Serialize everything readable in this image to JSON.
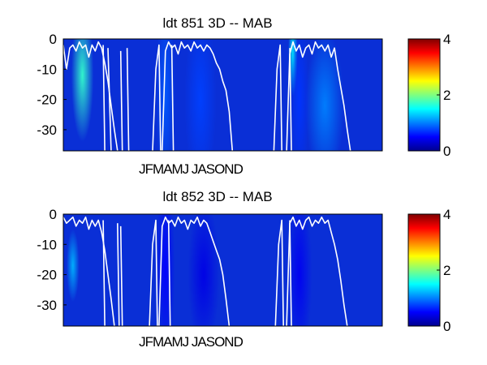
{
  "chart_data": [
    {
      "type": "heatmap",
      "title": "ldt   851 3D    -- MAB",
      "xlabel": "JFMAMJ JASOND",
      "ylabel": "",
      "ylim": [
        -37,
        0
      ],
      "yticks": [
        0,
        -10,
        -20,
        -30
      ],
      "colorbar": {
        "range": [
          0,
          4
        ],
        "ticks": [
          0,
          2,
          4
        ],
        "colormap": "jet"
      },
      "hotspots": [
        {
          "x": 0.06,
          "depth": -12,
          "value": 1.7,
          "w": 0.035,
          "d": 22
        },
        {
          "x": 0.32,
          "depth": -18,
          "value": 0.85,
          "w": 0.03,
          "d": 32
        },
        {
          "x": 0.43,
          "depth": -20,
          "value": 0.75,
          "w": 0.05,
          "d": 30
        },
        {
          "x": 0.72,
          "depth": -5,
          "value": 1.5,
          "w": 0.015,
          "d": 14
        },
        {
          "x": 0.82,
          "depth": -22,
          "value": 1.0,
          "w": 0.06,
          "d": 25
        },
        {
          "x": 0.74,
          "depth": -20,
          "value": 0.7,
          "w": 0.03,
          "d": 28
        }
      ],
      "line": {
        "color": "#ffffff",
        "segments": [
          [
            [
              0.0,
              -2
            ],
            [
              0.01,
              -10
            ],
            [
              0.02,
              -3
            ],
            [
              0.03,
              -2
            ],
            [
              0.04,
              -4
            ],
            [
              0.05,
              -1
            ],
            [
              0.06,
              -3
            ],
            [
              0.07,
              -2
            ],
            [
              0.08,
              -6
            ],
            [
              0.09,
              -2
            ],
            [
              0.1,
              -4
            ],
            [
              0.11,
              -1
            ],
            [
              0.12,
              -3
            ],
            [
              0.13,
              -8
            ],
            [
              0.14,
              -14
            ],
            [
              0.15,
              -22
            ],
            [
              0.16,
              -30
            ],
            [
              0.17,
              -37
            ]
          ],
          [
            [
              0.125,
              -2
            ],
            [
              0.13,
              -37
            ]
          ],
          [
            [
              0.14,
              -3
            ],
            [
              0.15,
              -37
            ]
          ],
          [
            [
              0.18,
              -4
            ],
            [
              0.185,
              -37
            ]
          ],
          [
            [
              0.2,
              -3
            ],
            [
              0.205,
              -37
            ]
          ],
          [
            [
              0.28,
              -37
            ],
            [
              0.29,
              -10
            ],
            [
              0.3,
              -2
            ],
            [
              0.305,
              -37
            ]
          ],
          [
            [
              0.31,
              -37
            ],
            [
              0.32,
              -4
            ],
            [
              0.33,
              -1
            ],
            [
              0.34,
              -3
            ],
            [
              0.35,
              -2
            ],
            [
              0.36,
              -5
            ],
            [
              0.37,
              -1
            ],
            [
              0.38,
              -3
            ],
            [
              0.39,
              -2
            ],
            [
              0.4,
              -4
            ],
            [
              0.41,
              -1
            ],
            [
              0.42,
              -3
            ],
            [
              0.43,
              -2
            ],
            [
              0.44,
              -4
            ],
            [
              0.45,
              -2
            ],
            [
              0.46,
              -3
            ],
            [
              0.47,
              -5
            ],
            [
              0.48,
              -8
            ],
            [
              0.49,
              -10
            ],
            [
              0.5,
              -14
            ],
            [
              0.51,
              -17
            ],
            [
              0.52,
              -24
            ],
            [
              0.53,
              -37
            ]
          ],
          [
            [
              0.34,
              -2
            ],
            [
              0.345,
              -37
            ]
          ],
          [
            [
              0.66,
              -37
            ],
            [
              0.67,
              -10
            ],
            [
              0.68,
              -2
            ],
            [
              0.685,
              -37
            ]
          ],
          [
            [
              0.7,
              -37
            ],
            [
              0.71,
              -5
            ],
            [
              0.72,
              -1
            ],
            [
              0.73,
              -4
            ],
            [
              0.74,
              -2
            ],
            [
              0.75,
              -6
            ],
            [
              0.76,
              -3
            ],
            [
              0.77,
              -2
            ],
            [
              0.78,
              -5
            ],
            [
              0.79,
              -1
            ],
            [
              0.8,
              -3
            ],
            [
              0.81,
              -2
            ],
            [
              0.82,
              -4
            ],
            [
              0.83,
              -2
            ],
            [
              0.84,
              -6
            ],
            [
              0.85,
              -3
            ],
            [
              0.86,
              -10
            ],
            [
              0.87,
              -16
            ],
            [
              0.88,
              -22
            ],
            [
              0.89,
              -30
            ],
            [
              0.9,
              -37
            ]
          ],
          [
            [
              0.71,
              -3
            ],
            [
              0.715,
              -37
            ]
          ]
        ]
      }
    },
    {
      "type": "heatmap",
      "title": "ldt   852 3D    -- MAB",
      "xlabel": "JFMAMJ JASOND",
      "ylabel": "",
      "ylim": [
        -37,
        0
      ],
      "yticks": [
        0,
        -10,
        -20,
        -30
      ],
      "colorbar": {
        "range": [
          0,
          4
        ],
        "ticks": [
          0,
          2,
          4
        ],
        "colormap": "jet"
      },
      "hotspots": [
        {
          "x": 0.03,
          "depth": -17,
          "value": 1.2,
          "w": 0.02,
          "d": 12
        },
        {
          "x": 0.32,
          "depth": -18,
          "value": 0.5,
          "w": 0.03,
          "d": 30
        },
        {
          "x": 0.44,
          "depth": -20,
          "value": 0.4,
          "w": 0.05,
          "d": 25
        },
        {
          "x": 0.74,
          "depth": -20,
          "value": 0.45,
          "w": 0.04,
          "d": 28
        }
      ],
      "line": {
        "color": "#ffffff",
        "segments": [
          [
            [
              0.0,
              -1
            ],
            [
              0.01,
              -3
            ],
            [
              0.02,
              -2
            ],
            [
              0.03,
              -1
            ],
            [
              0.04,
              -4
            ],
            [
              0.05,
              -2
            ],
            [
              0.06,
              -3
            ],
            [
              0.07,
              -1
            ],
            [
              0.08,
              -5
            ],
            [
              0.09,
              -2
            ],
            [
              0.1,
              -4
            ],
            [
              0.11,
              -2
            ],
            [
              0.12,
              -6
            ],
            [
              0.13,
              -12
            ],
            [
              0.14,
              -20
            ],
            [
              0.15,
              -28
            ],
            [
              0.16,
              -37
            ]
          ],
          [
            [
              0.125,
              -2
            ],
            [
              0.13,
              -37
            ]
          ],
          [
            [
              0.17,
              -3
            ],
            [
              0.175,
              -37
            ]
          ],
          [
            [
              0.18,
              -4
            ],
            [
              0.185,
              -37
            ]
          ],
          [
            [
              0.27,
              -37
            ],
            [
              0.28,
              -10
            ],
            [
              0.29,
              -2
            ],
            [
              0.295,
              -37
            ]
          ],
          [
            [
              0.3,
              -37
            ],
            [
              0.31,
              -4
            ],
            [
              0.32,
              -1
            ],
            [
              0.33,
              -3
            ],
            [
              0.34,
              -2
            ],
            [
              0.35,
              -4
            ],
            [
              0.36,
              -1
            ],
            [
              0.37,
              -3
            ],
            [
              0.38,
              -2
            ],
            [
              0.39,
              -5
            ],
            [
              0.4,
              -2
            ],
            [
              0.41,
              -3
            ],
            [
              0.42,
              -1
            ],
            [
              0.43,
              -4
            ],
            [
              0.44,
              -2
            ],
            [
              0.45,
              -3
            ],
            [
              0.46,
              -6
            ],
            [
              0.47,
              -9
            ],
            [
              0.48,
              -12
            ],
            [
              0.49,
              -15
            ],
            [
              0.5,
              -20
            ],
            [
              0.51,
              -28
            ],
            [
              0.52,
              -37
            ]
          ],
          [
            [
              0.33,
              -2
            ],
            [
              0.335,
              -37
            ]
          ],
          [
            [
              0.665,
              -37
            ],
            [
              0.675,
              -10
            ],
            [
              0.685,
              -2
            ],
            [
              0.69,
              -37
            ]
          ],
          [
            [
              0.7,
              -37
            ],
            [
              0.71,
              -3
            ],
            [
              0.72,
              -1
            ],
            [
              0.73,
              -4
            ],
            [
              0.74,
              -2
            ],
            [
              0.75,
              -5
            ],
            [
              0.76,
              -2
            ],
            [
              0.77,
              -1
            ],
            [
              0.78,
              -4
            ],
            [
              0.79,
              -2
            ],
            [
              0.8,
              -3
            ],
            [
              0.81,
              -1
            ],
            [
              0.82,
              -3
            ],
            [
              0.83,
              -2
            ],
            [
              0.84,
              -6
            ],
            [
              0.85,
              -10
            ],
            [
              0.86,
              -15
            ],
            [
              0.87,
              -22
            ],
            [
              0.88,
              -30
            ],
            [
              0.89,
              -37
            ]
          ],
          [
            [
              0.71,
              -2
            ],
            [
              0.715,
              -37
            ]
          ]
        ]
      }
    }
  ]
}
